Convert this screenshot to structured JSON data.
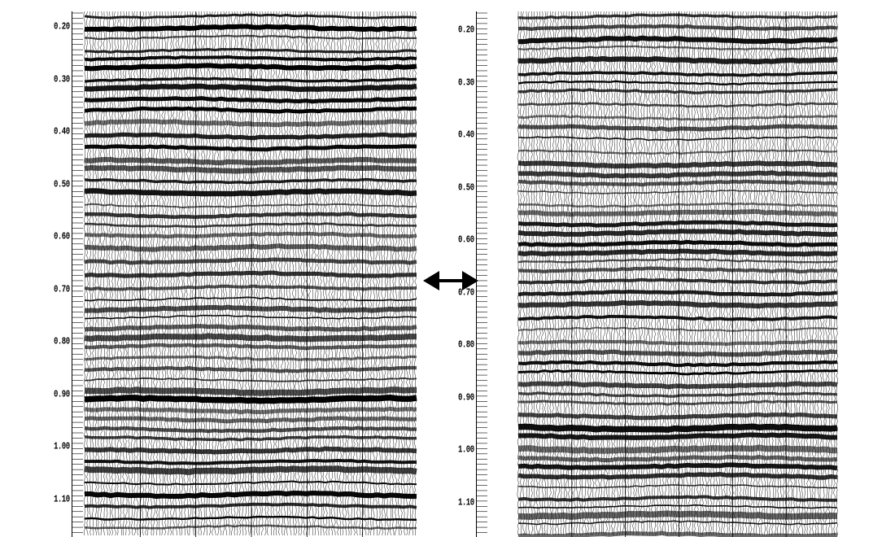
{
  "figure": {
    "panels": [
      {
        "id": "left",
        "time_axis_labels": [
          "0.20",
          "0.30",
          "0.40",
          "0.50",
          "0.60",
          "0.70",
          "0.80",
          "0.90",
          "1.00",
          "1.10"
        ]
      },
      {
        "id": "right",
        "time_axis_labels": [
          "0.20",
          "0.30",
          "0.40",
          "0.50",
          "0.60",
          "0.70",
          "0.80",
          "0.90",
          "1.00",
          "1.10"
        ]
      }
    ],
    "center_arrow": {
      "icon": "double-headed-arrow-icon",
      "color": "#000000"
    },
    "ink_color": "#000000",
    "background_color": "#ffffff"
  }
}
